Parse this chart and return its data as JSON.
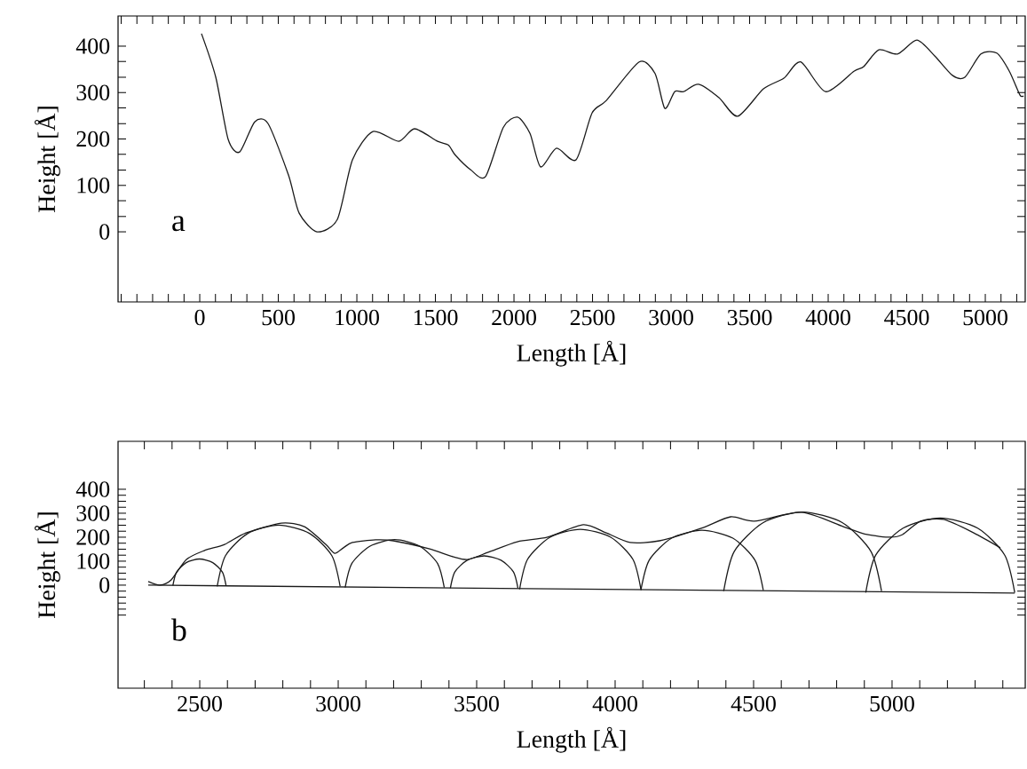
{
  "chart_data": [
    {
      "type": "line",
      "xlabel": "Length [Å]",
      "ylabel": "Height [Å]",
      "annotations": [
        "a"
      ],
      "color": "#1a1a1a",
      "x": [
        11,
        102,
        181,
        254,
        350,
        435,
        565,
        633,
        746,
        876,
        972,
        1102,
        1266,
        1367,
        1514,
        1582,
        1627,
        1723,
        1819,
        1932,
        2023,
        2102,
        2169,
        2271,
        2395,
        2497,
        2588,
        2797,
        2898,
        2960,
        3023,
        3079,
        3175,
        3305,
        3424,
        3588,
        3718,
        3825,
        3983,
        4164,
        4226,
        4322,
        4441,
        4565,
        4678,
        4791,
        4870,
        4972,
        5073,
        5153,
        5220,
        5243
      ],
      "values": [
        427,
        333,
        199,
        172,
        237,
        233,
        122,
        40,
        0,
        27,
        155,
        216,
        195,
        222,
        195,
        187,
        165,
        134,
        119,
        225,
        247,
        212,
        140,
        180,
        155,
        256,
        283,
        366,
        341,
        266,
        302,
        302,
        318,
        289,
        249,
        308,
        331,
        366,
        302,
        346,
        356,
        392,
        383,
        413,
        379,
        337,
        333,
        383,
        385,
        346,
        295,
        293
      ],
      "xlim": [
        -520,
        5254
      ],
      "ylim": [
        -151,
        465
      ],
      "xticks": [
        {
          "value": -500,
          "label": null
        },
        {
          "value": -400,
          "label": null
        },
        {
          "value": -300,
          "label": null
        },
        {
          "value": -200,
          "label": null
        },
        {
          "value": -100,
          "label": null
        },
        0,
        {
          "value": 100,
          "label": null
        },
        {
          "value": 200,
          "label": null
        },
        {
          "value": 300,
          "label": null
        },
        {
          "value": 400,
          "label": null
        },
        500,
        {
          "value": 600,
          "label": null
        },
        {
          "value": 700,
          "label": null
        },
        {
          "value": 800,
          "label": null
        },
        {
          "value": 900,
          "label": null
        },
        1000,
        {
          "value": 1100,
          "label": null
        },
        {
          "value": 1200,
          "label": null
        },
        {
          "value": 1300,
          "label": null
        },
        {
          "value": 1400,
          "label": null
        },
        1500,
        {
          "value": 1600,
          "label": null
        },
        {
          "value": 1700,
          "label": null
        },
        {
          "value": 1800,
          "label": null
        },
        {
          "value": 1900,
          "label": null
        },
        2000,
        {
          "value": 2100,
          "label": null
        },
        {
          "value": 2200,
          "label": null
        },
        {
          "value": 2300,
          "label": null
        },
        {
          "value": 2400,
          "label": null
        },
        2500,
        {
          "value": 2600,
          "label": null
        },
        {
          "value": 2700,
          "label": null
        },
        {
          "value": 2800,
          "label": null
        },
        {
          "value": 2900,
          "label": null
        },
        3000,
        {
          "value": 3100,
          "label": null
        },
        {
          "value": 3200,
          "label": null
        },
        {
          "value": 3300,
          "label": null
        },
        {
          "value": 3400,
          "label": null
        },
        3500,
        {
          "value": 3600,
          "label": null
        },
        {
          "value": 3700,
          "label": null
        },
        {
          "value": 3800,
          "label": null
        },
        {
          "value": 3900,
          "label": null
        },
        4000,
        {
          "value": 4100,
          "label": null
        },
        {
          "value": 4200,
          "label": null
        },
        {
          "value": 4300,
          "label": null
        },
        {
          "value": 4400,
          "label": null
        },
        4500,
        {
          "value": 4600,
          "label": null
        },
        {
          "value": 4700,
          "label": null
        },
        {
          "value": 4800,
          "label": null
        },
        {
          "value": 4900,
          "label": null
        },
        5000,
        {
          "value": 5100,
          "label": null
        },
        {
          "value": 5200,
          "label": null
        }
      ],
      "yticks": [
        0,
        {
          "value": 33,
          "label": null
        },
        {
          "value": 67,
          "label": null
        },
        100,
        {
          "value": 133,
          "label": null
        },
        {
          "value": 167,
          "label": null
        },
        200,
        {
          "value": 233,
          "label": null
        },
        {
          "value": 267,
          "label": null
        },
        300,
        {
          "value": 333,
          "label": null
        },
        {
          "value": 367,
          "label": null
        },
        400
      ]
    },
    {
      "type": "line",
      "xlabel": "Length [Å]",
      "ylabel": "Height [Å]",
      "annotations": [
        "b"
      ],
      "series": [
        {
          "color": "#1a1a1a",
          "x": [
            2314,
            2356,
            2397,
            2452,
            2516,
            2590,
            2667,
            2795,
            2878,
            2955,
            2987,
            3019,
            3051,
            3135,
            3199,
            3327,
            3413,
            3468,
            3542,
            3647,
            3756,
            3885,
            3968,
            4054,
            4160,
            4311,
            4417,
            4503,
            4673,
            4824,
            4910,
            4994,
            5038,
            5103,
            5186,
            5295,
            5391
          ],
          "values": [
            15,
            0,
            22,
            107,
            144,
            170,
            218,
            259,
            244,
            170,
            133,
            156,
            178,
            189,
            185,
            152,
            119,
            107,
            137,
            181,
            200,
            252,
            218,
            178,
            185,
            237,
            285,
            267,
            304,
            244,
            211,
            200,
            211,
            267,
            274,
            218,
            156
          ]
        },
        {
          "color": "#1a1a1a",
          "x": [
            2314,
            5443
          ],
          "values": [
            0,
            -33
          ]
        },
        {
          "color": "#1a1a1a",
          "x": [
            2403,
            2416,
            2451,
            2499,
            2547,
            2582,
            2595
          ],
          "values": [
            -2,
            54,
            94,
            109,
            94,
            54,
            -2
          ]
        },
        {
          "color": "#1a1a1a",
          "x": [
            2563,
            2593,
            2674,
            2785,
            2896,
            2977,
            3007
          ],
          "values": [
            -5,
            123,
            216,
            250,
            216,
            123,
            -5
          ]
        },
        {
          "color": "#1a1a1a",
          "x": [
            3025,
            3049,
            3115,
            3204,
            3294,
            3359,
            3383
          ],
          "values": [
            -10,
            90,
            163,
            190,
            163,
            90,
            -10
          ]
        },
        {
          "color": "#1a1a1a",
          "x": [
            3405,
            3421,
            3466,
            3527,
            3588,
            3633,
            3649
          ],
          "values": [
            -13,
            55,
            104,
            122,
            104,
            55,
            -13
          ]
        },
        {
          "color": "#1a1a1a",
          "x": [
            3655,
            3684,
            3765,
            3874,
            3984,
            4064,
            4093
          ],
          "values": [
            -17,
            108,
            200,
            233,
            200,
            108,
            -17
          ]
        },
        {
          "color": "#1a1a1a",
          "x": [
            4093,
            4123,
            4204,
            4314,
            4425,
            4505,
            4535
          ],
          "values": [
            -21,
            104,
            196,
            229,
            196,
            104,
            -21
          ]
        },
        {
          "color": "#1a1a1a",
          "x": [
            4392,
            4430,
            4535,
            4677,
            4820,
            4924,
            4962
          ],
          "values": [
            -25,
            140,
            261,
            305,
            261,
            140,
            -25
          ]
        },
        {
          "color": "#1a1a1a",
          "x": [
            4905,
            4941,
            5040,
            5174,
            5309,
            5407,
            5443
          ],
          "values": [
            -31,
            125,
            238,
            280,
            238,
            125,
            -31
          ]
        }
      ],
      "xlim": [
        2205,
        5481
      ],
      "ylim": [
        -430,
        600
      ],
      "xticks": [
        {
          "value": 2300,
          "label": null
        },
        {
          "value": 2400,
          "label": null
        },
        2500,
        {
          "value": 2600,
          "label": null
        },
        {
          "value": 2700,
          "label": null
        },
        {
          "value": 2800,
          "label": null
        },
        {
          "value": 2900,
          "label": null
        },
        3000,
        {
          "value": 3100,
          "label": null
        },
        {
          "value": 3200,
          "label": null
        },
        {
          "value": 3300,
          "label": null
        },
        {
          "value": 3400,
          "label": null
        },
        3500,
        {
          "value": 3600,
          "label": null
        },
        {
          "value": 3700,
          "label": null
        },
        {
          "value": 3800,
          "label": null
        },
        {
          "value": 3900,
          "label": null
        },
        4000,
        {
          "value": 4100,
          "label": null
        },
        {
          "value": 4200,
          "label": null
        },
        {
          "value": 4300,
          "label": null
        },
        {
          "value": 4400,
          "label": null
        },
        4500,
        {
          "value": 4600,
          "label": null
        },
        {
          "value": 4700,
          "label": null
        },
        {
          "value": 4800,
          "label": null
        },
        {
          "value": 4900,
          "label": null
        },
        5000,
        {
          "value": 5100,
          "label": null
        },
        {
          "value": 5200,
          "label": null
        },
        {
          "value": 5300,
          "label": null
        },
        {
          "value": 5400,
          "label": null
        }
      ],
      "yticks": [
        {
          "value": -125,
          "label": null
        },
        {
          "value": -100,
          "label": null
        },
        {
          "value": -75,
          "label": null
        },
        {
          "value": -50,
          "label": null
        },
        {
          "value": -25,
          "label": null
        },
        0,
        {
          "value": 25,
          "label": null
        },
        {
          "value": 50,
          "label": null
        },
        {
          "value": 75,
          "label": null
        },
        100,
        {
          "value": 125,
          "label": null
        },
        {
          "value": 150,
          "label": null
        },
        {
          "value": 175,
          "label": null
        },
        200,
        {
          "value": 225,
          "label": null
        },
        {
          "value": 250,
          "label": null
        },
        {
          "value": 275,
          "label": null
        },
        300,
        {
          "value": 325,
          "label": null
        },
        {
          "value": 350,
          "label": null
        },
        {
          "value": 375,
          "label": null
        },
        400
      ]
    }
  ]
}
